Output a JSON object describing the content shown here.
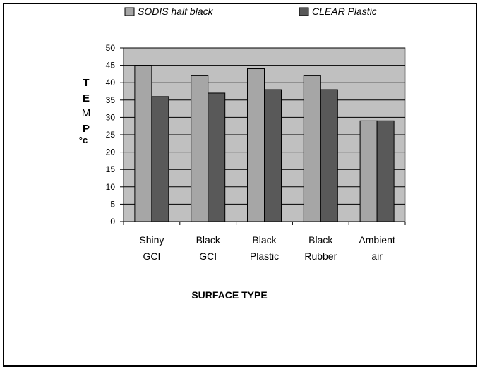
{
  "chart_data": {
    "type": "bar",
    "categories": [
      [
        "Shiny",
        "GCI"
      ],
      [
        "Black",
        "GCI"
      ],
      [
        "Black",
        "Plastic"
      ],
      [
        "Black",
        "Rubber"
      ],
      [
        "Ambient",
        "air"
      ]
    ],
    "series": [
      {
        "name": "SODIS half black",
        "values": [
          45,
          42,
          44,
          42,
          29
        ],
        "color": "#a6a6a6"
      },
      {
        "name": "CLEAR Plastic",
        "values": [
          36,
          37,
          38,
          38,
          29
        ],
        "color": "#595959"
      }
    ],
    "ylim": [
      0,
      50
    ],
    "yticks": [
      0,
      5,
      10,
      15,
      20,
      25,
      30,
      35,
      40,
      45,
      50
    ],
    "ylabel": [
      "T",
      "E",
      "M",
      "P",
      "°c"
    ],
    "xlabel": "SURFACE TYPE",
    "grid": true,
    "legend": "top",
    "plot_background": "#c0c0c0"
  }
}
